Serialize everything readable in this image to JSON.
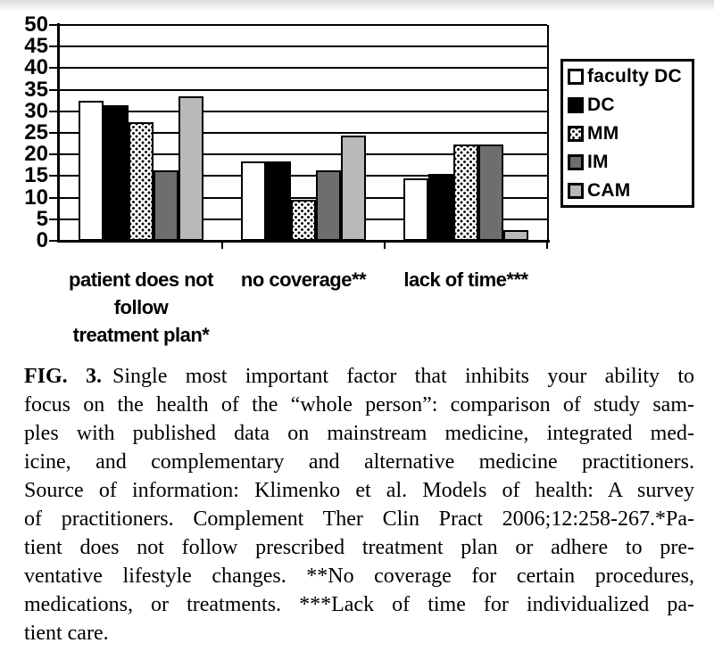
{
  "chart_data": {
    "type": "bar",
    "title": "",
    "xlabel": "",
    "ylabel": "",
    "categories": [
      "patient does not follow treatment plan*",
      "no coverage**",
      "lack of time***"
    ],
    "categories_display": [
      "patient does not\nfollow\ntreatment plan*",
      "no coverage**",
      "lack of time***"
    ],
    "series": [
      {
        "name": "faculty DC",
        "fill": "white",
        "values": [
          32,
          18,
          14
        ]
      },
      {
        "name": "DC",
        "fill": "black",
        "values": [
          31,
          18,
          15
        ]
      },
      {
        "name": "MM",
        "fill": "dots",
        "values": [
          27,
          9,
          22
        ]
      },
      {
        "name": "IM",
        "fill": "darkgray",
        "values": [
          16,
          16,
          22
        ]
      },
      {
        "name": "CAM",
        "fill": "lightgray",
        "values": [
          33,
          24,
          2
        ]
      }
    ],
    "ylim": [
      0,
      50
    ],
    "ytick_step": 5,
    "yticks": [
      0,
      5,
      10,
      15,
      20,
      25,
      30,
      35,
      40,
      45,
      50
    ],
    "grid": true,
    "legend_position": "right",
    "legend": [
      "faculty DC",
      "DC",
      "MM",
      "IM",
      "CAM"
    ]
  },
  "colors": {
    "bar_white": "#ffffff",
    "bar_black": "#000000",
    "bar_dark_gray": "#6e6e6e",
    "bar_light_gray": "#b9b9b9",
    "line": "#000000"
  },
  "caption": {
    "label": "FIG. 3.",
    "line1_rest": "Single most important factor that inhibits your ability to",
    "lines": [
      "focus on the health of the “whole person”: comparison of study sam-",
      "ples with published data on mainstream medicine, integrated med-",
      "icine, and complementary and alternative medicine practitioners.",
      "Source of information: Klimenko et al. Models of health: A survey",
      "of practitioners. Complement Ther Clin Pract 2006;12:258-267.*Pa-",
      "tient does not follow prescribed treatment plan or adhere to pre-",
      "ventative lifestyle changes. **No coverage for certain procedures,",
      "medications, or treatments. ***Lack of time for individualized pa-",
      "tient care."
    ]
  }
}
